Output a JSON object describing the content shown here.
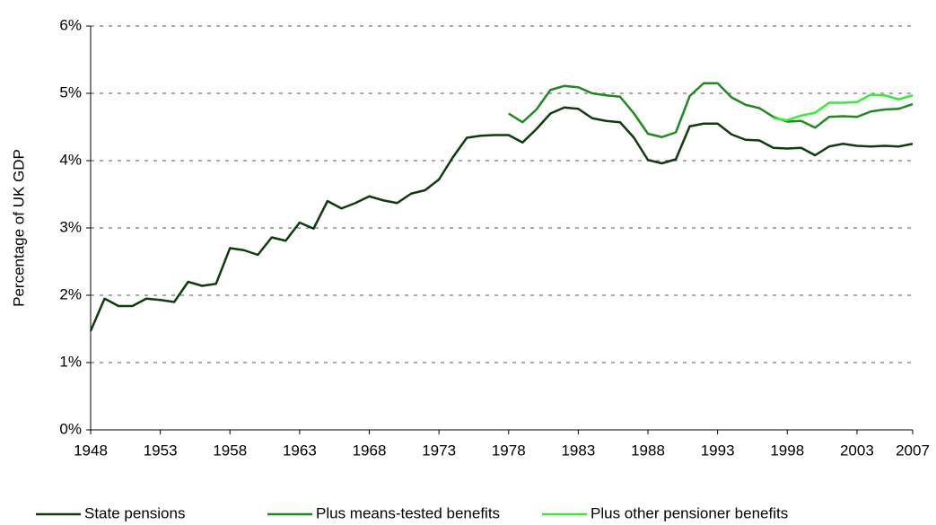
{
  "chart_data": {
    "type": "line",
    "y_label": "Percentage of UK GDP",
    "x": [
      1948,
      1949,
      1950,
      1951,
      1952,
      1953,
      1954,
      1955,
      1956,
      1957,
      1958,
      1959,
      1960,
      1961,
      1962,
      1963,
      1964,
      1965,
      1966,
      1967,
      1968,
      1969,
      1970,
      1971,
      1972,
      1973,
      1974,
      1975,
      1976,
      1977,
      1978,
      1979,
      1980,
      1981,
      1982,
      1983,
      1984,
      1985,
      1986,
      1987,
      1988,
      1989,
      1990,
      1991,
      1992,
      1993,
      1994,
      1995,
      1996,
      1997,
      1998,
      1999,
      2000,
      2001,
      2002,
      2003,
      2004,
      2005,
      2006,
      2007
    ],
    "series": [
      {
        "name": "State pensions",
        "color": "#0d3d0d",
        "values": [
          1.47,
          1.95,
          1.84,
          1.84,
          1.95,
          1.93,
          1.9,
          2.2,
          2.14,
          2.17,
          2.7,
          2.67,
          2.6,
          2.86,
          2.81,
          3.08,
          2.99,
          3.4,
          3.29,
          3.37,
          3.47,
          3.41,
          3.37,
          3.51,
          3.56,
          3.72,
          4.05,
          4.34,
          4.37,
          4.38,
          4.38,
          4.27,
          4.47,
          4.7,
          4.79,
          4.77,
          4.63,
          4.59,
          4.57,
          4.34,
          4.01,
          3.96,
          4.02,
          4.51,
          4.55,
          4.55,
          4.39,
          4.31,
          4.3,
          4.19,
          4.18,
          4.19,
          4.08,
          4.21,
          4.25,
          4.22,
          4.21,
          4.22,
          4.21,
          4.25
        ]
      },
      {
        "name": "Plus means-tested benefits",
        "color": "#1e8a1e",
        "values": [
          null,
          null,
          null,
          null,
          null,
          null,
          null,
          null,
          null,
          null,
          null,
          null,
          null,
          null,
          null,
          null,
          null,
          null,
          null,
          null,
          null,
          null,
          null,
          null,
          null,
          null,
          null,
          null,
          null,
          null,
          4.7,
          4.57,
          4.76,
          5.05,
          5.11,
          5.09,
          5.0,
          4.97,
          4.95,
          4.7,
          4.4,
          4.35,
          4.42,
          4.96,
          5.15,
          5.15,
          4.94,
          4.83,
          4.78,
          4.65,
          4.58,
          4.59,
          4.49,
          4.65,
          4.66,
          4.65,
          4.73,
          4.76,
          4.77,
          4.84
        ]
      },
      {
        "name": "Plus other pensioner benefits",
        "color": "#33ee33",
        "values": [
          null,
          null,
          null,
          null,
          null,
          null,
          null,
          null,
          null,
          null,
          null,
          null,
          null,
          null,
          null,
          null,
          null,
          null,
          null,
          null,
          null,
          null,
          null,
          null,
          null,
          null,
          null,
          null,
          null,
          null,
          null,
          null,
          null,
          null,
          null,
          null,
          null,
          null,
          null,
          null,
          null,
          null,
          null,
          null,
          null,
          null,
          null,
          null,
          null,
          4.63,
          4.6,
          4.67,
          4.71,
          4.86,
          4.86,
          4.87,
          4.98,
          4.97,
          4.91,
          4.97
        ]
      }
    ],
    "xlim": [
      1948,
      2007
    ],
    "xticks": [
      1948,
      1953,
      1958,
      1963,
      1968,
      1973,
      1978,
      1983,
      1988,
      1993,
      1998,
      2003,
      2007
    ],
    "ylim": [
      0,
      6
    ],
    "yticks": [
      {
        "value": 0,
        "label": "0%"
      },
      {
        "value": 1,
        "label": "1%"
      },
      {
        "value": 2,
        "label": "2%"
      },
      {
        "value": 3,
        "label": "3%"
      },
      {
        "value": 4,
        "label": "4%"
      },
      {
        "value": 5,
        "label": "5%"
      },
      {
        "value": 6,
        "label": "6%"
      }
    ],
    "grid": true,
    "legend": "bottom"
  }
}
